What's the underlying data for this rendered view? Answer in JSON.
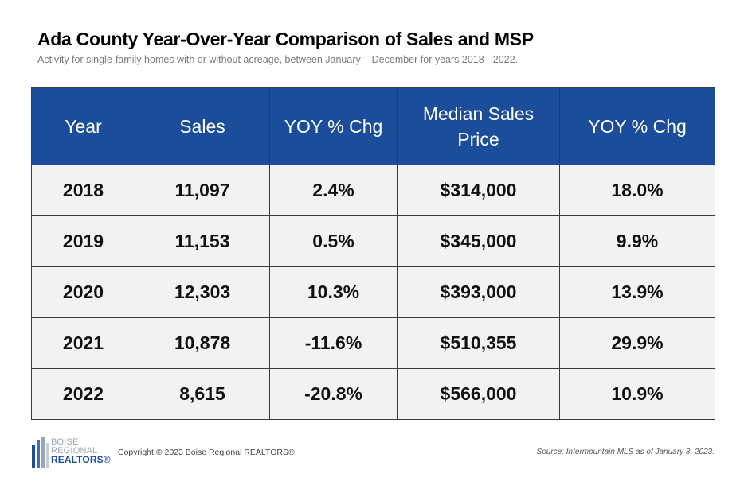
{
  "header": {
    "title": "Ada County Year-Over-Year Comparison of Sales and MSP",
    "subtitle": "Activity for single-family homes with or without acreage, between January – December for years 2018 - 2022."
  },
  "chart_data": {
    "type": "table",
    "columns": [
      "Year",
      "Sales",
      "YOY % Chg",
      "Median Sales Price",
      "YOY % Chg"
    ],
    "rows": [
      [
        "2018",
        "11,097",
        "2.4%",
        "$314,000",
        "18.0%"
      ],
      [
        "2019",
        "11,153",
        "0.5%",
        "$345,000",
        "9.9%"
      ],
      [
        "2020",
        "12,303",
        "10.3%",
        "$393,000",
        "13.9%"
      ],
      [
        "2021",
        "10,878",
        "-11.6%",
        "$510,355",
        "29.9%"
      ],
      [
        "2022",
        "8,615",
        "-20.8%",
        "$566,000",
        "10.9%"
      ]
    ]
  },
  "footer": {
    "logo_line1": "BOISE",
    "logo_line2": "REGIONAL",
    "logo_line3": "REALTORS®",
    "copyright": "Copyright © 2023 Boise Regional REALTORS®",
    "source": "Source: Intermountain MLS as of January 8, 2023."
  },
  "colors": {
    "header_bg": "#1b4d9b",
    "row_bg": "#f2f2f2",
    "border": "#3a3a3a"
  }
}
